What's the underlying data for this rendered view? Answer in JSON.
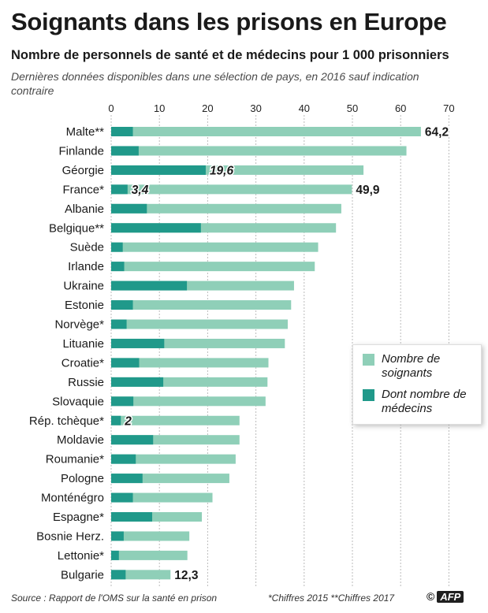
{
  "header": {
    "title": "Soignants dans les prisons en Europe",
    "subtitle": "Nombre de personnels de santé et de médecins pour 1 000 prisonniers",
    "note": "Dernières données disponibles dans une sélection de pays, en 2016 sauf indication contraire"
  },
  "footer": {
    "source": "Source : Rapport de l'OMS sur la santé en prison",
    "footnote": "*Chiffres 2015 **Chiffres 2017",
    "copyright": "©",
    "agency": "AFP"
  },
  "legend": {
    "position": "right",
    "items": [
      {
        "label": "Nombre de soignants",
        "color": "#8fcfb8"
      },
      {
        "label": "Dont nombre de médecins",
        "color": "#20998a"
      }
    ]
  },
  "colors": {
    "soignants": "#8fcfb8",
    "medecins": "#20998a",
    "grid": "#bbbbbb"
  },
  "chart_data": {
    "type": "bar",
    "orientation": "horizontal",
    "xlim": [
      0,
      70
    ],
    "xticks": [
      0,
      10,
      20,
      30,
      40,
      50,
      60,
      70
    ],
    "grid": true,
    "categories": [
      "Malte**",
      "Finlande",
      "Géorgie",
      "France*",
      "Albanie",
      "Belgique**",
      "Suède",
      "Irlande",
      "Ukraine",
      "Estonie",
      "Norvège*",
      "Lituanie",
      "Croatie*",
      "Russie",
      "Slovaquie",
      "Rép. tchèque*",
      "Moldavie",
      "Roumanie*",
      "Pologne",
      "Monténégro",
      "Espagne*",
      "Bosnie Herz.",
      "Lettonie*",
      "Bulgarie"
    ],
    "series": [
      {
        "name": "Nombre de soignants",
        "values": [
          64.2,
          61.2,
          52.3,
          49.9,
          47.7,
          46.6,
          42.9,
          42.2,
          37.9,
          37.3,
          36.6,
          36.0,
          32.6,
          32.4,
          32.0,
          26.6,
          26.6,
          25.8,
          24.5,
          21.0,
          18.8,
          16.2,
          15.8,
          12.3
        ]
      },
      {
        "name": "Dont nombre de médecins",
        "values": [
          4.5,
          5.7,
          19.6,
          3.4,
          7.4,
          18.6,
          2.4,
          2.7,
          15.7,
          4.5,
          3.2,
          11.0,
          5.8,
          10.8,
          4.6,
          2.0,
          8.7,
          5.1,
          6.5,
          4.5,
          8.5,
          2.6,
          1.6,
          3.0
        ]
      }
    ],
    "data_labels": [
      {
        "category": "Malte**",
        "series": "Nombre de soignants",
        "text": "64,2"
      },
      {
        "category": "Géorgie",
        "series": "Dont nombre de médecins",
        "text": "19,6"
      },
      {
        "category": "France*",
        "series": "Dont nombre de médecins",
        "text": "3,4"
      },
      {
        "category": "France*",
        "series": "Nombre de soignants",
        "text": "49,9"
      },
      {
        "category": "Rép. tchèque*",
        "series": "Dont nombre de médecins",
        "text": "2"
      },
      {
        "category": "Bulgarie",
        "series": "Nombre de soignants",
        "text": "12,3"
      }
    ]
  }
}
